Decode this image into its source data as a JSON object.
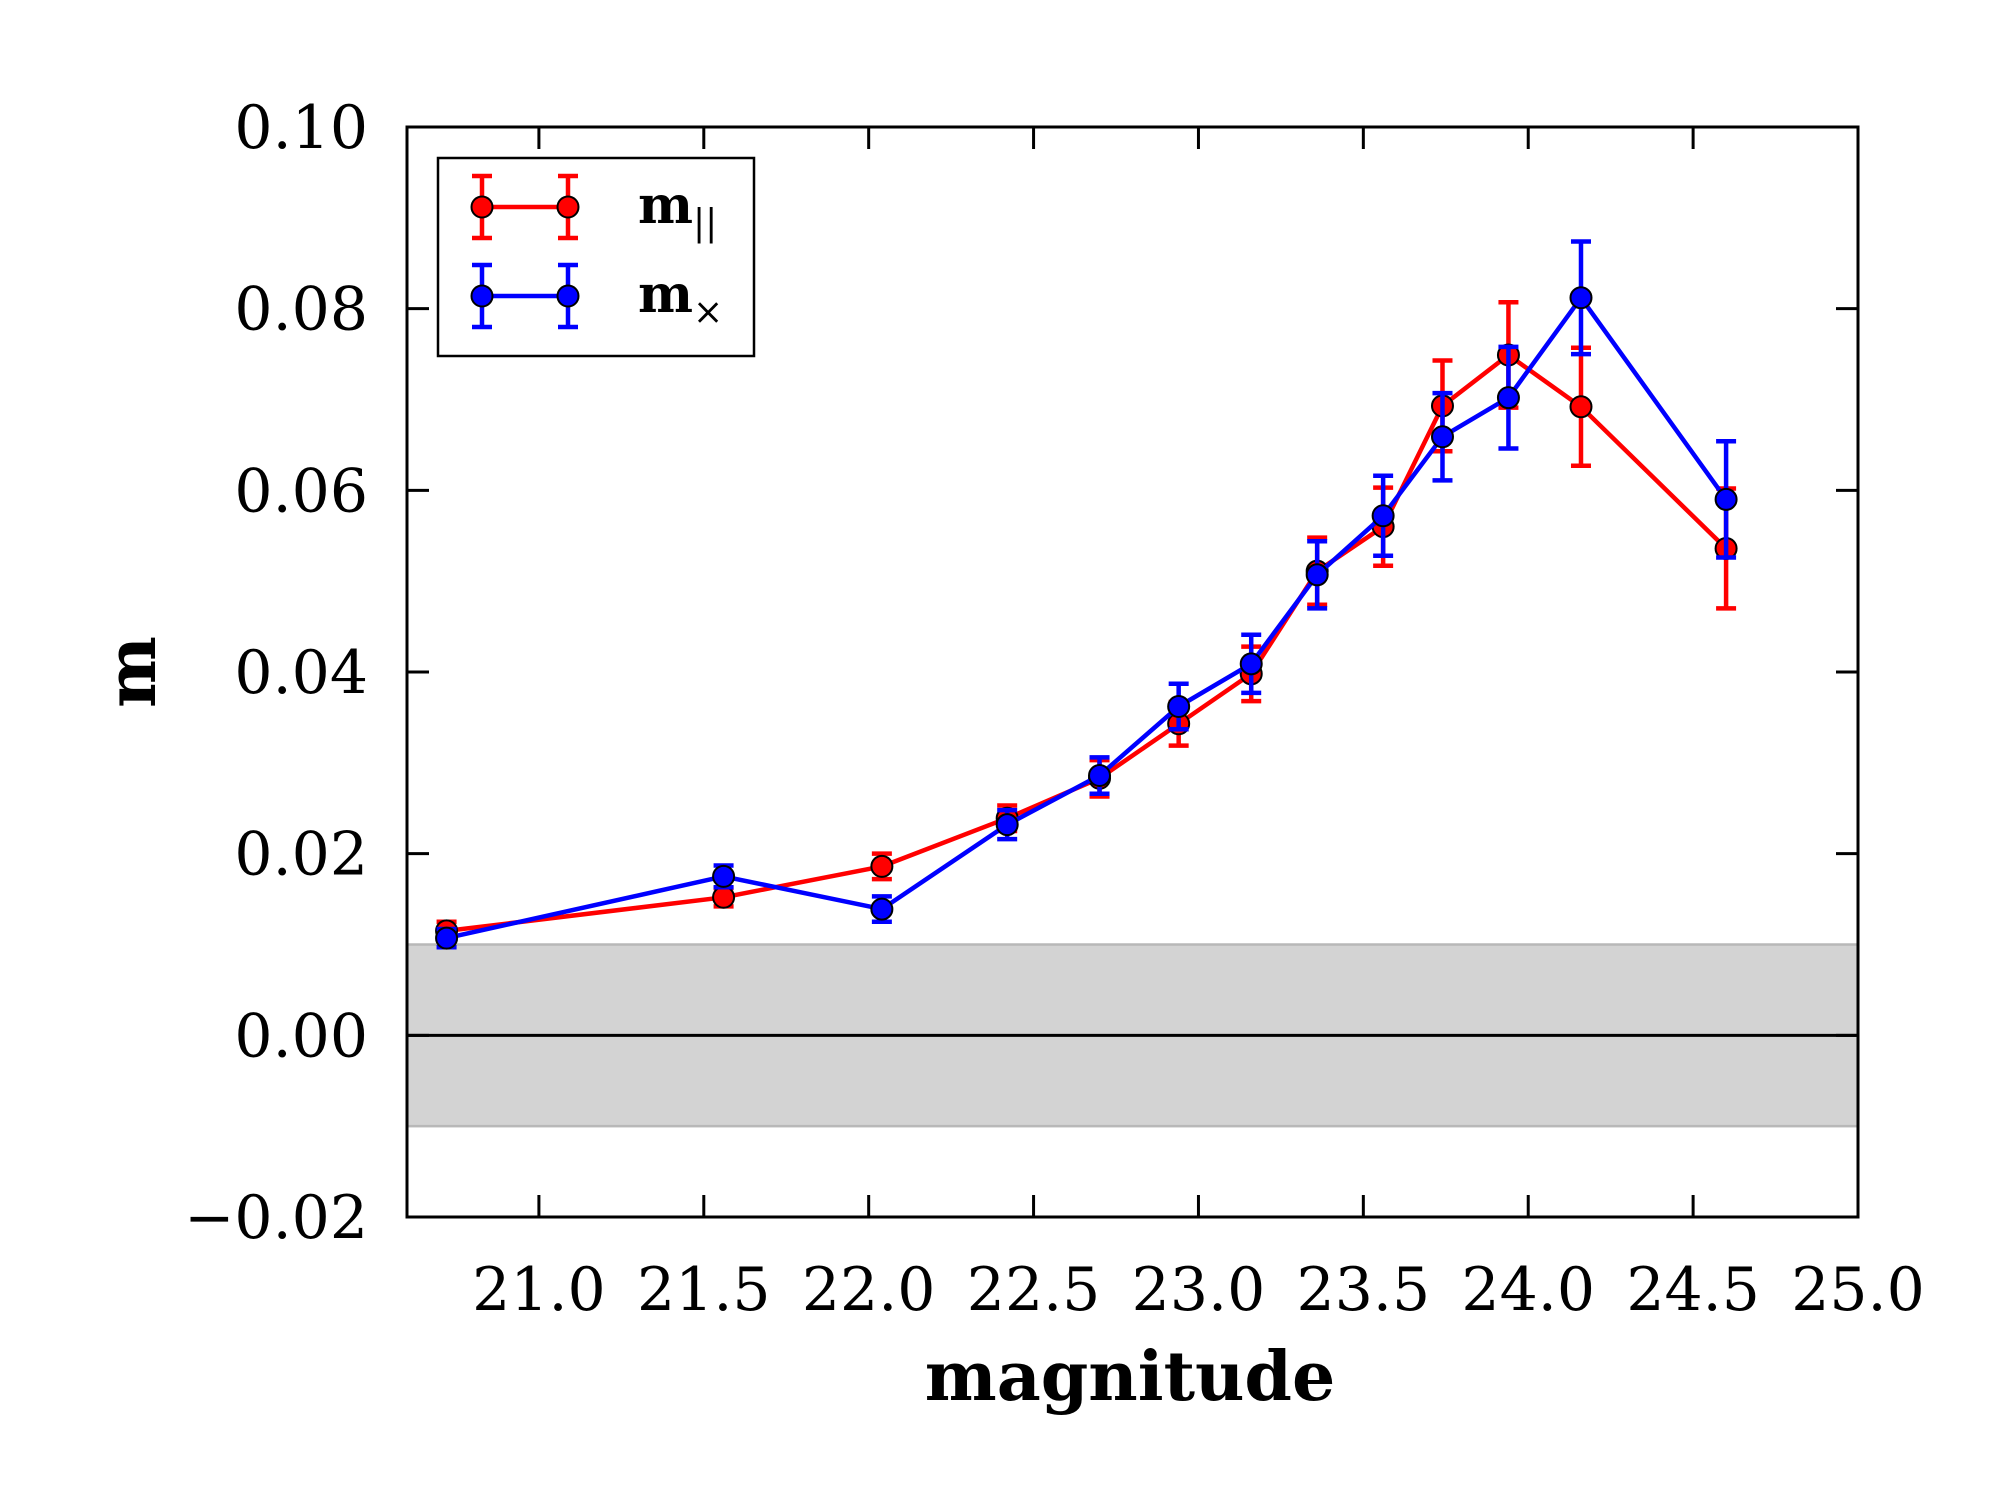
{
  "chart_data": {
    "type": "line",
    "title": "",
    "xlabel": "magnitude",
    "ylabel": "m",
    "xlim": [
      20.6,
      25.0
    ],
    "ylim": [
      -0.02,
      0.1
    ],
    "xticks": [
      21.0,
      21.5,
      22.0,
      22.5,
      23.0,
      23.5,
      24.0,
      24.5,
      25.0
    ],
    "xtick_labels": [
      "21.0",
      "21.5",
      "22.0",
      "22.5",
      "23.0",
      "23.5",
      "24.0",
      "24.5",
      "25.0"
    ],
    "yticks": [
      -0.02,
      0.0,
      0.02,
      0.04,
      0.06,
      0.08,
      0.1
    ],
    "ytick_labels": [
      "−0.02",
      "0.00",
      "0.02",
      "0.04",
      "0.06",
      "0.08",
      "0.10"
    ],
    "shaded_band": {
      "y_min": -0.01,
      "y_max": 0.01,
      "color": "#d3d3d3"
    },
    "reference_line_y": 0.0,
    "legend_position": "top-left",
    "series": [
      {
        "name": "m_parallel",
        "label_main": "m",
        "label_sub": "||",
        "color": "#ff0000",
        "x": [
          20.72,
          21.56,
          22.04,
          22.42,
          22.7,
          22.94,
          23.16,
          23.36,
          23.56,
          23.74,
          23.94,
          24.16,
          24.6
        ],
        "y": [
          0.0115,
          0.0152,
          0.0186,
          0.0239,
          0.0283,
          0.0343,
          0.0398,
          0.0511,
          0.056,
          0.0693,
          0.0749,
          0.0692,
          0.0536
        ],
        "yerr": [
          0.001,
          0.001,
          0.0014,
          0.0014,
          0.002,
          0.0024,
          0.003,
          0.0037,
          0.0043,
          0.005,
          0.0058,
          0.0065,
          0.0066
        ]
      },
      {
        "name": "m_cross",
        "label_main": "m",
        "label_sub": "×",
        "color": "#0000ff",
        "x": [
          20.72,
          21.56,
          22.04,
          22.42,
          22.7,
          22.94,
          23.16,
          23.36,
          23.56,
          23.74,
          23.94,
          24.16,
          24.6
        ],
        "y": [
          0.0107,
          0.0175,
          0.0139,
          0.0232,
          0.0286,
          0.0362,
          0.0409,
          0.0507,
          0.0572,
          0.0659,
          0.0702,
          0.0812,
          0.059
        ],
        "yerr": [
          0.001,
          0.0012,
          0.0014,
          0.0016,
          0.002,
          0.0025,
          0.0032,
          0.0037,
          0.0044,
          0.0048,
          0.0056,
          0.0062,
          0.0064
        ]
      }
    ]
  }
}
